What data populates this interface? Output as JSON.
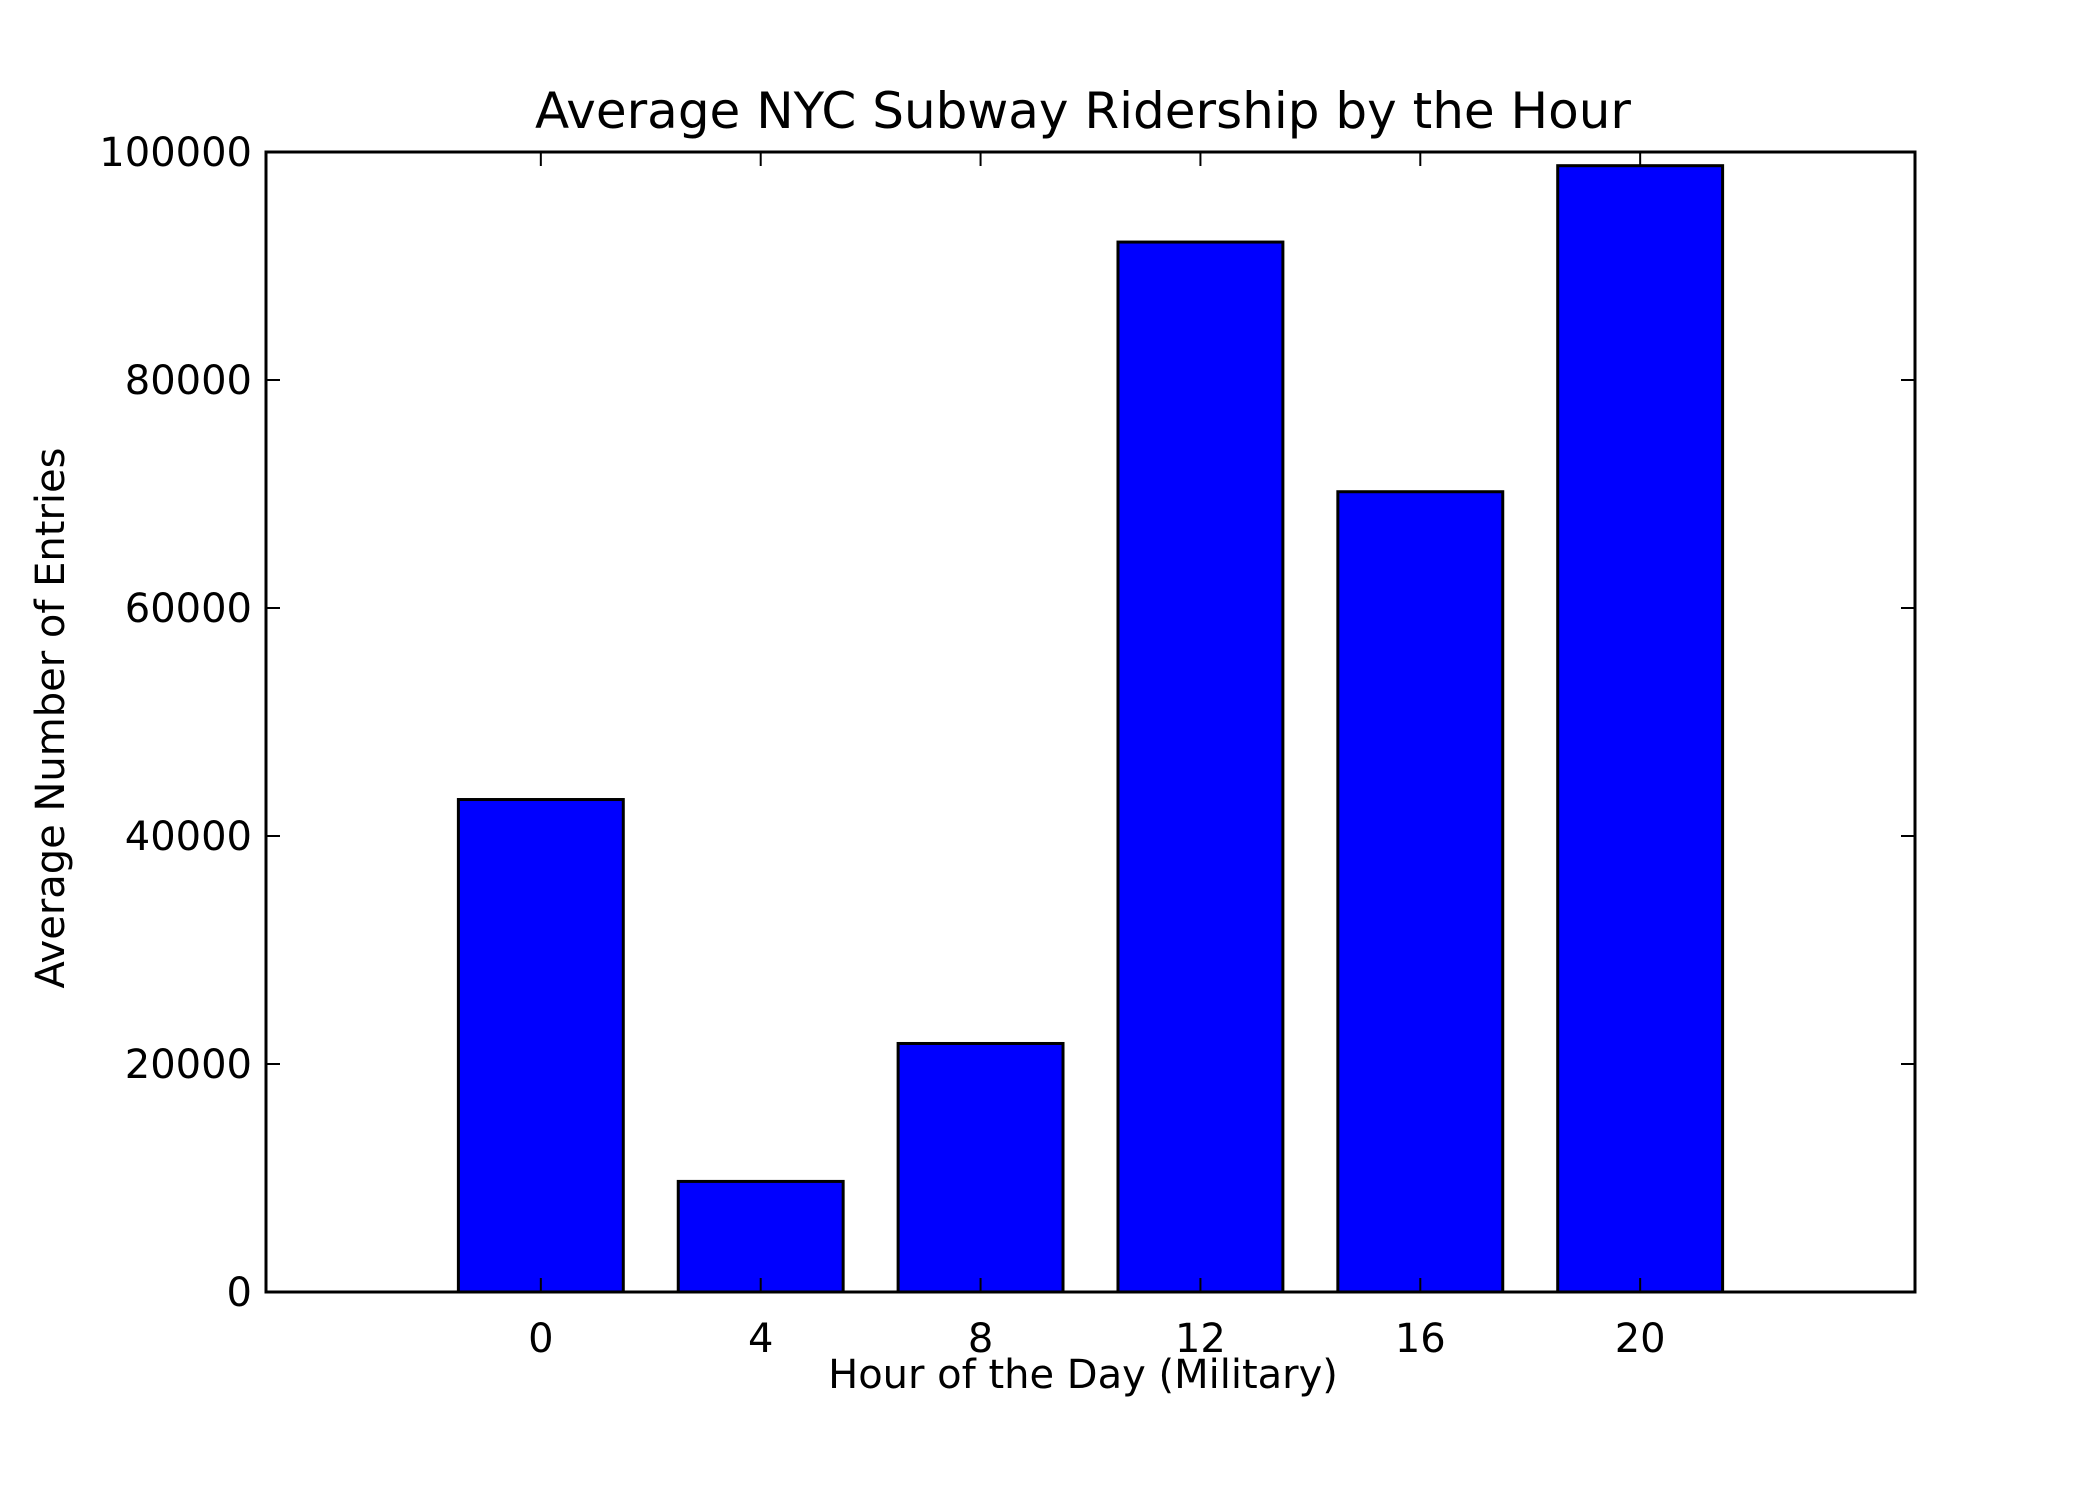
{
  "chart_data": {
    "type": "bar",
    "title": "Average NYC Subway Ridership by the Hour",
    "xlabel": "Hour of the Day (Military)",
    "ylabel": "Average Number of Entries",
    "categories": [
      "0",
      "4",
      "8",
      "12",
      "16",
      "20"
    ],
    "x": [
      0,
      4,
      8,
      12,
      16,
      20
    ],
    "values": [
      43200,
      9700,
      21800,
      92100,
      70200,
      98800
    ],
    "xlim": [
      -5,
      25
    ],
    "ylim": [
      0,
      100000
    ],
    "yticks": [
      0,
      20000,
      40000,
      60000,
      80000,
      100000
    ],
    "ytick_labels": [
      "0",
      "20000",
      "40000",
      "60000",
      "80000",
      "100000"
    ],
    "grid": false,
    "legend": "none",
    "colors": {
      "bar_fill": "#0000ff",
      "bar_edge": "#000000",
      "axes": "#000000"
    }
  }
}
